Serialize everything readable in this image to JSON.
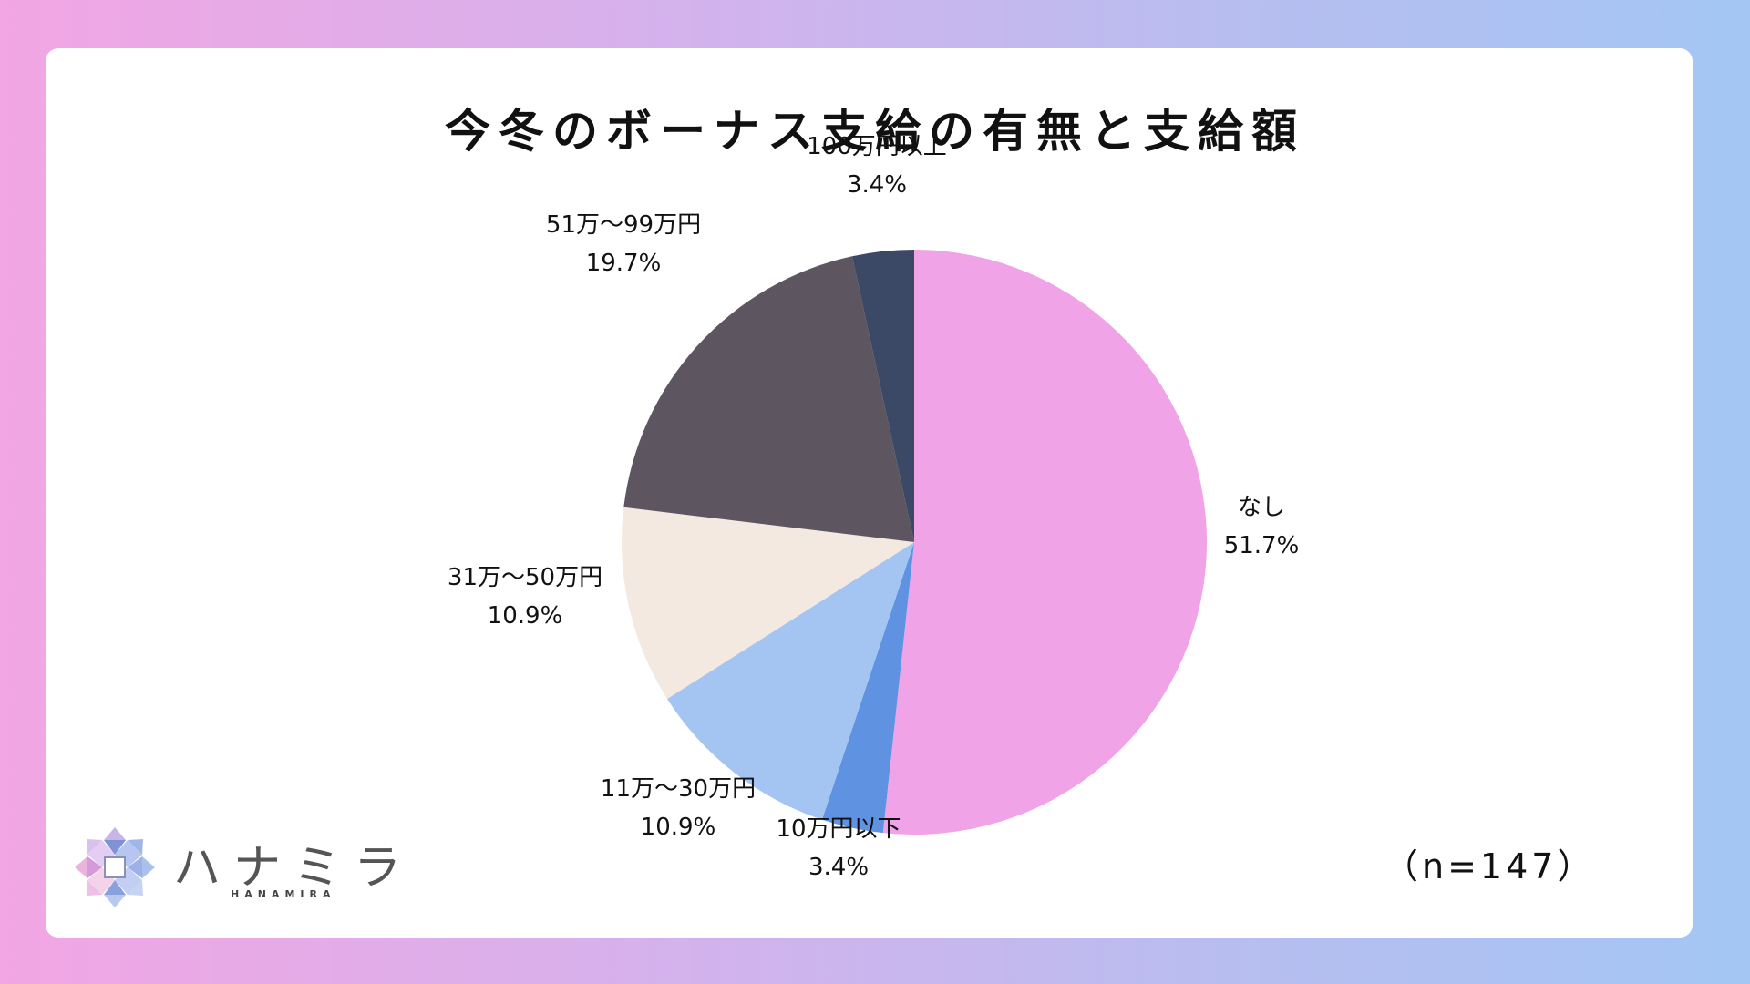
{
  "chart_data": {
    "type": "pie",
    "title": "今冬のボーナス支給の有無と支給額",
    "sample_size": "（n=147）",
    "slices": [
      {
        "label": "なし",
        "value": 51.7,
        "value_label": "51.7%",
        "color": "#f0a3e6"
      },
      {
        "label": "10万円以下",
        "value": 3.4,
        "value_label": "3.4%",
        "color": "#5f93e2"
      },
      {
        "label": "11万～30万円",
        "value": 10.9,
        "value_label": "10.9%",
        "color": "#a4c5f1"
      },
      {
        "label": "31万～50万円",
        "value": 10.9,
        "value_label": "10.9%",
        "color": "#f3e9e1"
      },
      {
        "label": "51万～99万円",
        "value": 19.7,
        "value_label": "19.7%",
        "color": "#5d5661"
      },
      {
        "label": "100万円以上",
        "value": 3.4,
        "value_label": "3.4%",
        "color": "#3b4866"
      }
    ],
    "start": "12 o'clock",
    "direction": "clockwise"
  },
  "logo": {
    "text": "ハナミラ",
    "subtext": "HANAMIRA"
  }
}
